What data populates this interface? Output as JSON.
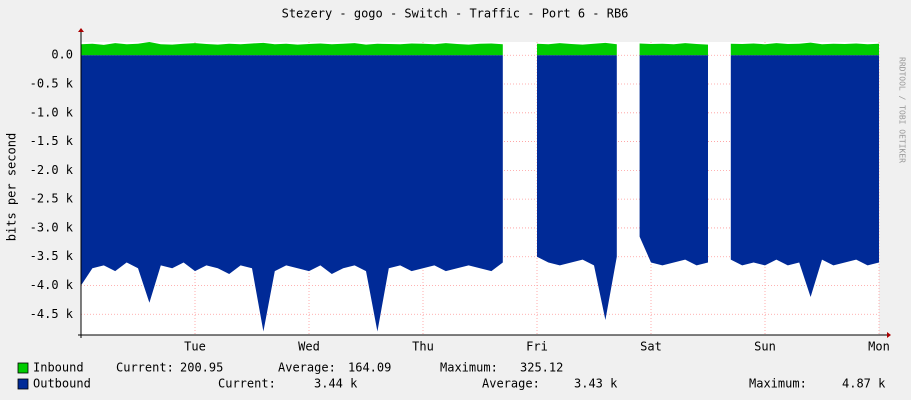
{
  "chart_data": {
    "type": "area",
    "title": "Stezery - gogo - Switch - Traffic - Port  6 - RB6",
    "y_label": "bits per second",
    "watermark": "RRDTOOL / TOBI OETIKER",
    "xlim": [
      0,
      7
    ],
    "xticks": [
      {
        "value": 1,
        "label": "Tue"
      },
      {
        "value": 2,
        "label": "Wed"
      },
      {
        "value": 3,
        "label": "Thu"
      },
      {
        "value": 4,
        "label": "Fri"
      },
      {
        "value": 5,
        "label": "Sat"
      },
      {
        "value": 6,
        "label": "Sun"
      },
      {
        "value": 7,
        "label": "Mon"
      }
    ],
    "ylim": [
      -4860,
      230
    ],
    "yticks": [
      {
        "value": 0,
        "label": "0.0"
      },
      {
        "value": -500,
        "label": "-0.5 k"
      },
      {
        "value": -1000,
        "label": "-1.0 k"
      },
      {
        "value": -1500,
        "label": "-1.5 k"
      },
      {
        "value": -2000,
        "label": "-2.0 k"
      },
      {
        "value": -2500,
        "label": "-2.5 k"
      },
      {
        "value": -3000,
        "label": "-3.0 k"
      },
      {
        "value": -3500,
        "label": "-3.5 k"
      },
      {
        "value": -4000,
        "label": "-4.0 k"
      },
      {
        "value": -4500,
        "label": "-4.5 k"
      }
    ],
    "grid": true,
    "x": [
      0,
      0.1,
      0.2,
      0.3,
      0.4,
      0.5,
      0.6,
      0.7,
      0.8,
      0.9,
      1,
      1.1,
      1.2,
      1.3,
      1.4,
      1.5,
      1.6,
      1.7,
      1.8,
      1.9,
      2,
      2.1,
      2.2,
      2.3,
      2.4,
      2.5,
      2.6,
      2.7,
      2.8,
      2.9,
      3,
      3.1,
      3.2,
      3.3,
      3.4,
      3.5,
      3.6,
      3.7,
      3.8,
      3.9,
      4,
      4.1,
      4.2,
      4.3,
      4.4,
      4.5,
      4.6,
      4.7,
      4.8,
      4.9,
      5,
      5.1,
      5.2,
      5.3,
      5.4,
      5.5,
      5.6,
      5.7,
      5.8,
      5.9,
      6,
      6.1,
      6.2,
      6.3,
      6.4,
      6.5,
      6.6,
      6.7,
      6.8,
      6.9,
      7
    ],
    "series": [
      {
        "name": "Inbound",
        "color": "#00cc00",
        "values": [
          190,
          200,
          180,
          210,
          190,
          200,
          230,
          190,
          185,
          200,
          210,
          195,
          185,
          200,
          190,
          205,
          215,
          190,
          200,
          185,
          195,
          205,
          190,
          200,
          210,
          185,
          200,
          195,
          190,
          205,
          200,
          190,
          210,
          195,
          185,
          200,
          205,
          190,
          null,
          null,
          200,
          190,
          210,
          195,
          185,
          200,
          215,
          190,
          null,
          205,
          195,
          200,
          190,
          210,
          195,
          185,
          null,
          200,
          195,
          205,
          190,
          210,
          195,
          200,
          220,
          190,
          200,
          195,
          205,
          190,
          200
        ],
        "stats": {
          "current_label": "Current:",
          "current": "200.95",
          "average_label": "Average:",
          "average": "164.09",
          "maximum_label": "Maximum:",
          "maximum": "325.12"
        }
      },
      {
        "name": "Outbound",
        "color": "#002a97",
        "values": [
          -4000,
          -3700,
          -3650,
          -3750,
          -3600,
          -3700,
          -4300,
          -3650,
          -3700,
          -3600,
          -3750,
          -3650,
          -3700,
          -3800,
          -3650,
          -3700,
          -4800,
          -3750,
          -3650,
          -3700,
          -3750,
          -3650,
          -3800,
          -3700,
          -3650,
          -3750,
          -4800,
          -3700,
          -3650,
          -3750,
          -3700,
          -3650,
          -3750,
          -3700,
          -3650,
          -3700,
          -3750,
          -3600,
          null,
          null,
          -3500,
          -3600,
          -3650,
          -3600,
          -3550,
          -3650,
          -4600,
          -3500,
          null,
          -3150,
          -3600,
          -3650,
          -3600,
          -3550,
          -3650,
          -3600,
          null,
          -3550,
          -3650,
          -3600,
          -3650,
          -3550,
          -3650,
          -3600,
          -4200,
          -3550,
          -3650,
          -3600,
          -3550,
          -3650,
          -3600
        ],
        "stats": {
          "current_label": "Current:",
          "current": "3.44 k",
          "average_label": "Average:",
          "average": "3.43 k",
          "maximum_label": "Maximum:",
          "maximum": "4.87 k"
        }
      }
    ]
  }
}
